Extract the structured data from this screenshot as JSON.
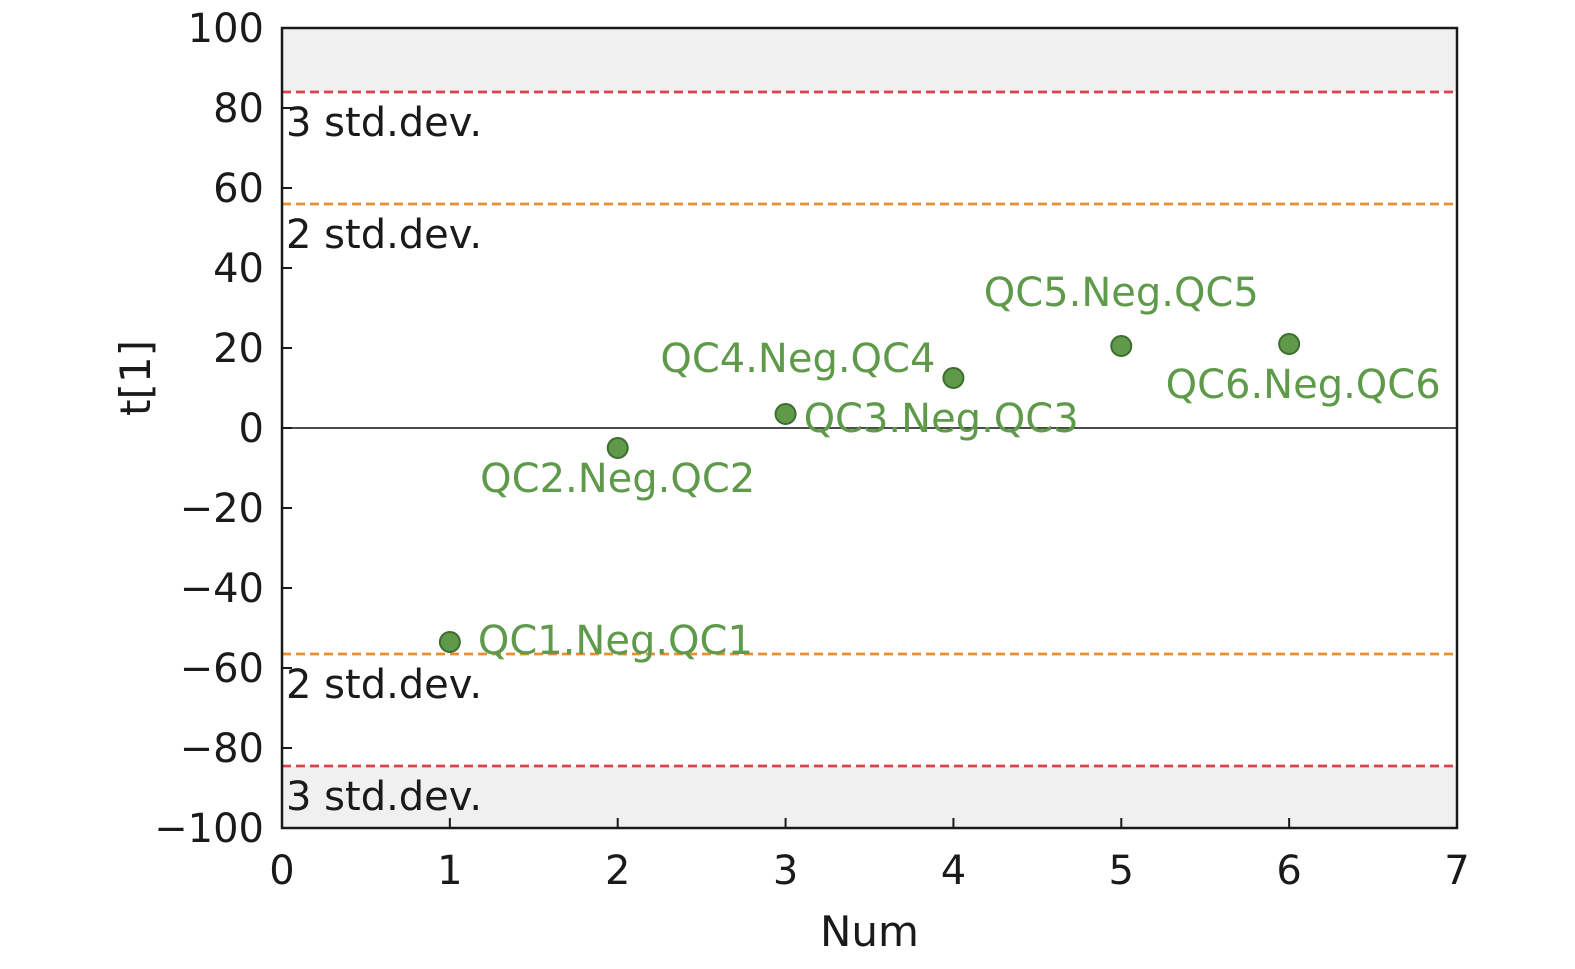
{
  "chart_data": {
    "type": "scatter",
    "xlabel": "Num",
    "ylabel": "t[1]",
    "xlim": [
      0,
      7
    ],
    "ylim": [
      -100,
      100
    ],
    "x_ticks": [
      0,
      1,
      2,
      3,
      4,
      5,
      6,
      7
    ],
    "y_ticks": [
      100,
      80,
      60,
      40,
      20,
      0,
      -20,
      -40,
      -60,
      -80,
      -100
    ],
    "x_tick_labels": [
      "0",
      "1",
      "2",
      "3",
      "4",
      "5",
      "6",
      "7"
    ],
    "y_tick_labels": [
      "100",
      "80",
      "60",
      "40",
      "20",
      "0",
      "−20",
      "−40",
      "−60",
      "−80",
      "−100"
    ],
    "grid": false,
    "series": [
      {
        "color": "#5e9a4a",
        "points": [
          {
            "x": 1,
            "y": -53.5,
            "label": "QC1.Neg.QC1"
          },
          {
            "x": 2,
            "y": -5,
            "label": "QC2.Neg.QC2"
          },
          {
            "x": 3,
            "y": 3.5,
            "label": "QC3.Neg.QC3"
          },
          {
            "x": 4,
            "y": 12.5,
            "label": "QC4.Neg.QC4"
          },
          {
            "x": 5,
            "y": 20.5,
            "label": "QC5.Neg.QC5"
          },
          {
            "x": 6,
            "y": 21,
            "label": "QC6.Neg.QC6"
          }
        ]
      }
    ],
    "reference_lines": [
      {
        "y": 84,
        "label": "3 std.dev.",
        "color": "#d9434b"
      },
      {
        "y": 56,
        "label": "2 std.dev.",
        "color": "#e8902f"
      },
      {
        "y": -56.5,
        "label": "2 std.dev.",
        "color": "#e8902f"
      },
      {
        "y": -84.5,
        "label": "3 std.dev.",
        "color": "#d9434b"
      },
      {
        "y": 0,
        "label": "",
        "color": "#333333"
      }
    ],
    "outer_band_color": "#f1f0f0"
  }
}
